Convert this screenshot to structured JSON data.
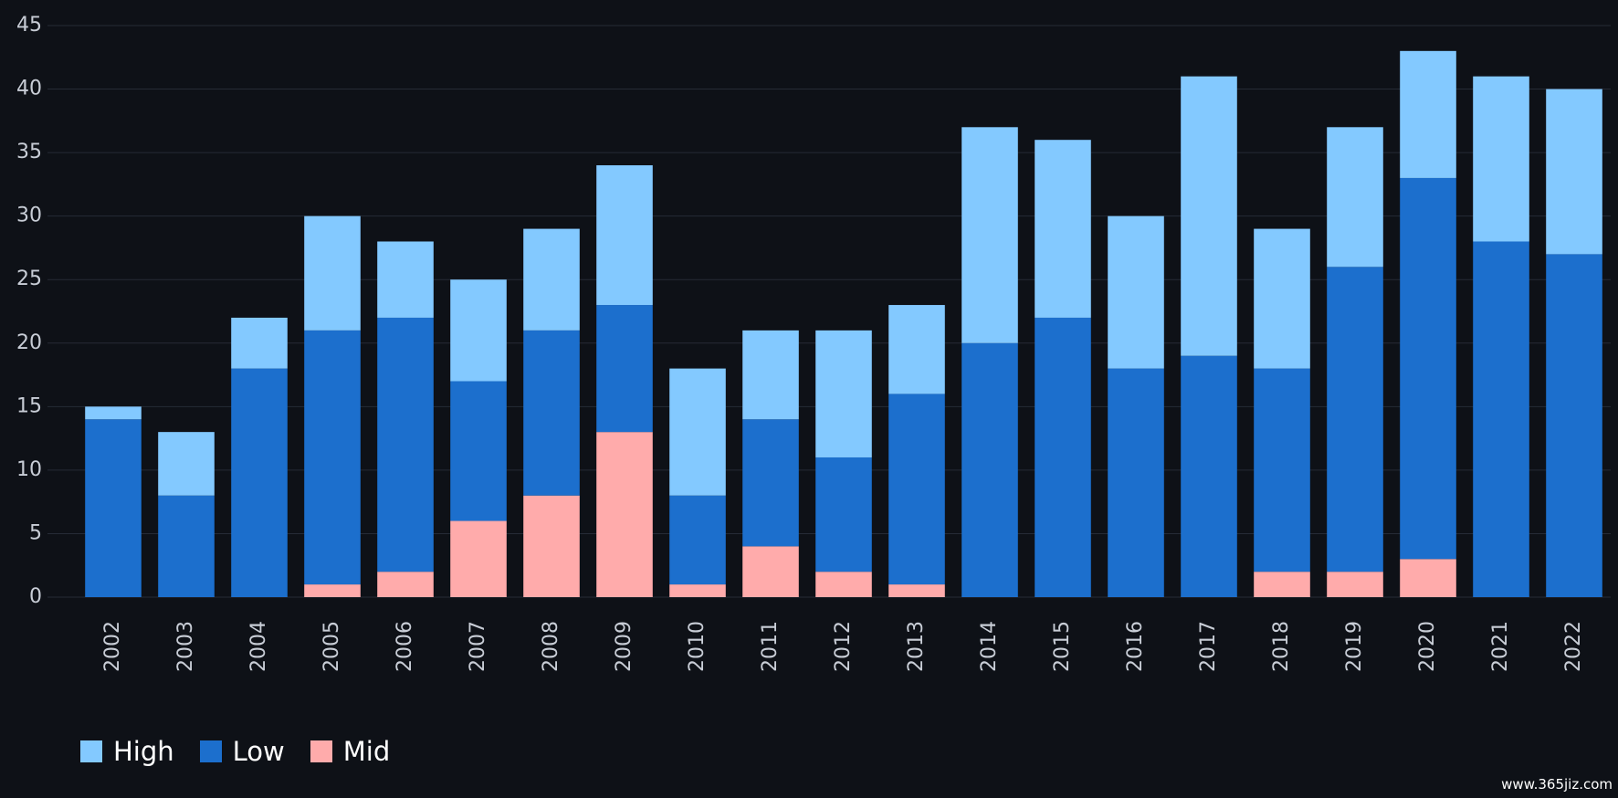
{
  "chart_data": {
    "type": "bar",
    "stacked": true,
    "categories": [
      "2002",
      "2003",
      "2004",
      "2005",
      "2006",
      "2007",
      "2008",
      "2009",
      "2010",
      "2011",
      "2012",
      "2013",
      "2014",
      "2015",
      "2016",
      "2017",
      "2018",
      "2019",
      "2020",
      "2021",
      "2022"
    ],
    "series": [
      {
        "name": "Mid",
        "color": "#ffabab",
        "values": [
          0,
          0,
          0,
          1,
          2,
          6,
          8,
          13,
          1,
          4,
          2,
          1,
          0,
          0,
          0,
          0,
          2,
          2,
          3,
          0,
          0
        ]
      },
      {
        "name": "Low",
        "color": "#1c6fcd",
        "values": [
          14,
          8,
          18,
          20,
          20,
          11,
          13,
          10,
          7,
          10,
          9,
          15,
          20,
          22,
          18,
          19,
          16,
          24,
          30,
          28,
          27
        ]
      },
      {
        "name": "High",
        "color": "#83c9ff",
        "values": [
          1,
          5,
          4,
          9,
          6,
          8,
          8,
          11,
          10,
          7,
          10,
          7,
          17,
          14,
          12,
          22,
          11,
          11,
          10,
          13,
          13
        ]
      }
    ],
    "ylim": [
      0,
      45
    ],
    "yticks": [
      0,
      5,
      10,
      15,
      20,
      25,
      30,
      35,
      40,
      45
    ],
    "title": "",
    "xlabel": "",
    "ylabel": "",
    "grid": true,
    "legend_position": "bottom-left",
    "legend_order": [
      "High",
      "Low",
      "Mid"
    ]
  },
  "theme": {
    "background": "#0e1117",
    "grid_color": "#262b36",
    "text_color": "#c8cdd6"
  },
  "watermark": "www.365jiz.com"
}
